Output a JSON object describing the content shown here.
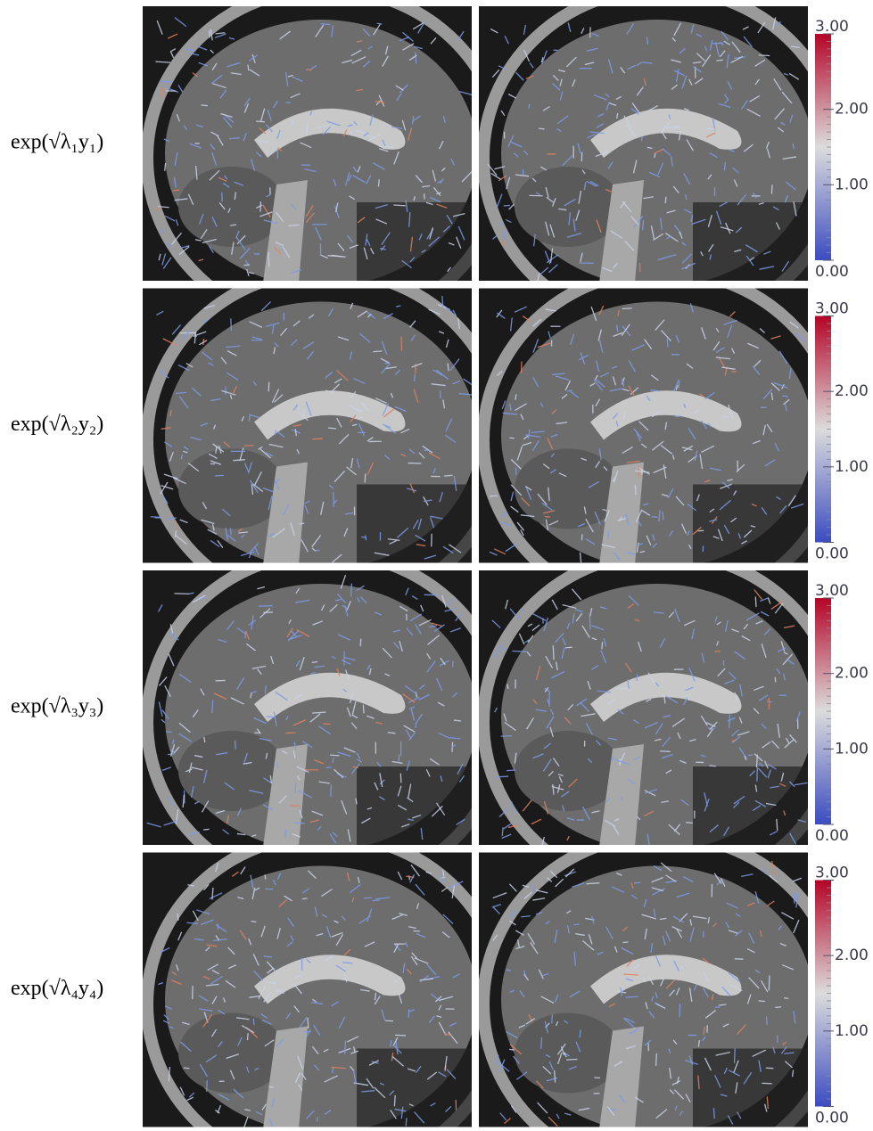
{
  "colormap": [
    "#3b4cc0",
    "#dcdcdc",
    "#b40426"
  ],
  "rows": [
    {
      "label": "exp(√λ₁y₁)",
      "colorbar": {
        "lim": [
          0,
          3
        ],
        "ticks": [
          {
            "value": 0,
            "label": "0.00"
          },
          {
            "value": 1,
            "label": "1.00"
          },
          {
            "value": 2,
            "label": "2.00"
          },
          {
            "value": 3,
            "label": "3.00"
          }
        ]
      }
    },
    {
      "label": "exp(√λ₂y₂)",
      "colorbar": {
        "lim": [
          0,
          3
        ],
        "ticks": [
          {
            "value": 0,
            "label": "0.00"
          },
          {
            "value": 1,
            "label": "1.00"
          },
          {
            "value": 2,
            "label": "2.00"
          },
          {
            "value": 3,
            "label": "3.00"
          }
        ]
      }
    },
    {
      "label": "exp(√λ₃y₃)",
      "colorbar": {
        "lim": [
          0,
          3
        ],
        "ticks": [
          {
            "value": 0,
            "label": "0.00"
          },
          {
            "value": 1,
            "label": "1.00"
          },
          {
            "value": 2,
            "label": "2.00"
          },
          {
            "value": 3,
            "label": "3.00"
          }
        ]
      }
    },
    {
      "label": "exp(√λ₄y₄)",
      "colorbar": {
        "lim": [
          0,
          3
        ],
        "ticks": [
          {
            "value": 0,
            "label": "0.00"
          },
          {
            "value": 1,
            "label": "1.00"
          },
          {
            "value": 2,
            "label": "2.00"
          },
          {
            "value": 3,
            "label": "3.00"
          }
        ]
      }
    }
  ]
}
